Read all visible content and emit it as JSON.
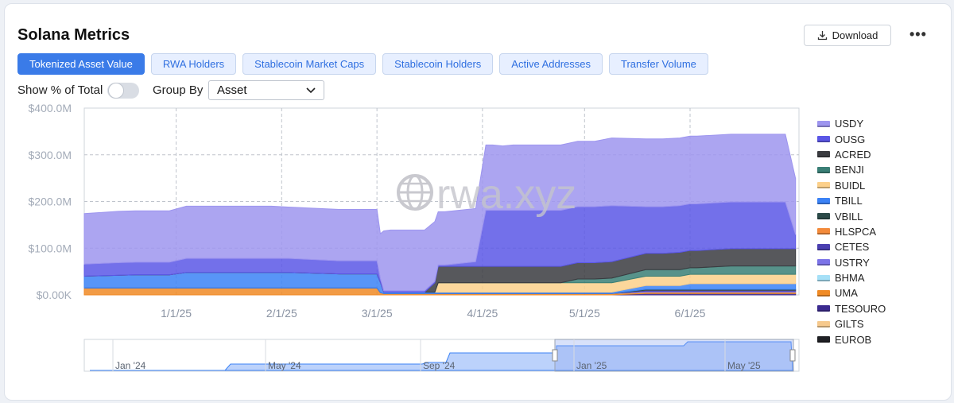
{
  "header": {
    "title": "Solana Metrics",
    "download_label": "Download",
    "more_label": "•••"
  },
  "tabs": [
    {
      "label": "Tokenized Asset Value",
      "active": true
    },
    {
      "label": "RWA Holders",
      "active": false
    },
    {
      "label": "Stablecoin Market Caps",
      "active": false
    },
    {
      "label": "Stablecoin Holders",
      "active": false
    },
    {
      "label": "Active Addresses",
      "active": false
    },
    {
      "label": "Transfer Volume",
      "active": false
    }
  ],
  "controls": {
    "show_pct_label": "Show % of Total",
    "show_pct_on": false,
    "group_by_label": "Group By",
    "group_by_value": "Asset"
  },
  "watermark": "rwa.xyz",
  "colors": {
    "accent": "#3a7be8",
    "tab_bg": "#e7efff"
  },
  "chart_data": {
    "type": "area",
    "stacked": true,
    "y_ticks": [
      "$0.00K",
      "$100.0M",
      "$200.0M",
      "$300.0M",
      "$400.0M"
    ],
    "ylim": [
      0,
      400
    ],
    "x_ticks": [
      "1/1/25",
      "2/1/25",
      "3/1/25",
      "4/1/25",
      "5/1/25",
      "6/1/25"
    ],
    "x_tick_days": [
      27,
      58,
      86,
      117,
      147,
      178
    ],
    "x_range_days": [
      0,
      210
    ],
    "grid": true,
    "legend_position": "right",
    "x": [
      0,
      10,
      15,
      25,
      30,
      40,
      55,
      60,
      75,
      80,
      84,
      86,
      87,
      88,
      90,
      94,
      95,
      100,
      103,
      104,
      106,
      115,
      118,
      120,
      123,
      126,
      128,
      130,
      138,
      140,
      145,
      147,
      150,
      155,
      165,
      168,
      170,
      175,
      178,
      180,
      185,
      190,
      195,
      200,
      205,
      206,
      209
    ],
    "series": [
      {
        "name": "EUROB",
        "color": "#1f2024",
        "values": [
          0,
          0,
          0,
          0,
          0,
          0,
          0,
          0,
          0,
          0,
          0,
          0,
          0,
          0,
          0,
          0,
          0,
          0,
          0,
          0,
          0,
          0,
          0,
          0,
          0,
          0,
          0,
          0,
          0,
          0,
          0,
          0,
          0,
          0,
          0,
          0,
          0,
          0,
          0,
          0,
          0,
          0,
          0,
          0,
          0,
          0,
          0
        ]
      },
      {
        "name": "GILTS",
        "color": "#f6c98d",
        "values": [
          0,
          0,
          0,
          0,
          0,
          0,
          0,
          0,
          0,
          0,
          0,
          0,
          0,
          0,
          0,
          0,
          0,
          0,
          0,
          0,
          0,
          0,
          0,
          0,
          0,
          0,
          0,
          0,
          0,
          0,
          0,
          0,
          0,
          0,
          0,
          0,
          0,
          0,
          0,
          0,
          0,
          0,
          0,
          0,
          0,
          0,
          0
        ]
      },
      {
        "name": "TESOURO",
        "color": "#3b2a8f",
        "values": [
          0,
          0,
          0,
          0,
          0,
          0,
          0,
          0,
          0,
          0,
          0,
          0,
          0,
          0,
          0,
          0,
          0,
          0,
          0,
          0,
          0,
          0,
          0,
          0,
          0,
          0,
          0,
          0,
          0,
          0,
          0,
          0,
          0,
          0,
          3,
          3,
          3,
          3,
          3,
          3,
          3,
          3,
          3,
          3,
          3,
          3,
          3
        ]
      },
      {
        "name": "UMA",
        "color": "#f08a24",
        "values": [
          15,
          15,
          15,
          15,
          15,
          15,
          15,
          15,
          15,
          15,
          15,
          15,
          5,
          3,
          3,
          3,
          3,
          3,
          3,
          3,
          3,
          3,
          3,
          3,
          3,
          3,
          3,
          3,
          3,
          3,
          3,
          3,
          3,
          3,
          3,
          3,
          3,
          3,
          3,
          3,
          3,
          3,
          3,
          3,
          3,
          3,
          3
        ]
      },
      {
        "name": "BHMA",
        "color": "#a6e0f7",
        "values": [
          0,
          0,
          0,
          0,
          0,
          0,
          0,
          0,
          0,
          0,
          0,
          0,
          0,
          0,
          0,
          0,
          0,
          0,
          0,
          0,
          0,
          0,
          0,
          0,
          0,
          0,
          0,
          0,
          0,
          0,
          0,
          0,
          0,
          0,
          0,
          0,
          0,
          0,
          0,
          0,
          0,
          0,
          0,
          0,
          0,
          0,
          0
        ]
      },
      {
        "name": "USTRY",
        "color": "#7b73e8",
        "values": [
          0,
          0,
          0,
          0,
          0,
          0,
          0,
          0,
          0,
          0,
          0,
          0,
          0,
          0,
          0,
          0,
          0,
          0,
          0,
          0,
          0,
          0,
          0,
          0,
          0,
          0,
          0,
          0,
          0,
          0,
          0,
          0,
          0,
          0,
          2,
          2,
          2,
          2,
          2,
          2,
          2,
          2,
          2,
          2,
          2,
          2,
          2
        ]
      },
      {
        "name": "CETES",
        "color": "#4a3fb0",
        "values": [
          0,
          0,
          0,
          0,
          0,
          0,
          0,
          0,
          0,
          0,
          0,
          0,
          0,
          0,
          0,
          0,
          0,
          0,
          0,
          0,
          0,
          0,
          0,
          0,
          0,
          0,
          0,
          0,
          0,
          0,
          0,
          0,
          0,
          0,
          2,
          2,
          2,
          2,
          2,
          2,
          2,
          2,
          2,
          2,
          2,
          2,
          2
        ]
      },
      {
        "name": "HLSPCA",
        "color": "#f38a3a",
        "values": [
          0,
          0,
          0,
          0,
          0,
          0,
          0,
          0,
          0,
          0,
          0,
          0,
          0,
          0,
          0,
          0,
          0,
          0,
          0,
          0,
          0,
          0,
          0,
          0,
          0,
          0,
          0,
          0,
          0,
          0,
          0,
          0,
          0,
          0,
          0,
          0,
          0,
          0,
          0,
          0,
          0,
          0,
          0,
          0,
          0,
          0,
          0
        ]
      },
      {
        "name": "VBILL",
        "color": "#2b4a48",
        "values": [
          0,
          0,
          0,
          0,
          0,
          0,
          0,
          0,
          0,
          0,
          0,
          0,
          0,
          0,
          0,
          0,
          0,
          0,
          0,
          0,
          0,
          0,
          0,
          0,
          0,
          0,
          0,
          0,
          0,
          0,
          0,
          0,
          0,
          0,
          2,
          2,
          2,
          2,
          2,
          2,
          2,
          2,
          2,
          2,
          2,
          2,
          2
        ]
      },
      {
        "name": "TBILL",
        "color": "#3b82f6",
        "values": [
          25,
          27,
          28,
          28,
          33,
          33,
          33,
          33,
          30,
          30,
          30,
          30,
          22,
          3,
          3,
          3,
          3,
          3,
          3,
          3,
          3,
          3,
          3,
          3,
          3,
          3,
          3,
          3,
          3,
          3,
          3,
          3,
          3,
          3,
          8,
          8,
          8,
          8,
          12,
          12,
          12,
          12,
          12,
          12,
          12,
          12,
          12
        ]
      },
      {
        "name": "BUIDL",
        "color": "#fcd08a",
        "values": [
          0,
          0,
          0,
          0,
          0,
          0,
          0,
          0,
          0,
          0,
          0,
          0,
          0,
          0,
          0,
          0,
          0,
          0,
          0,
          20,
          20,
          20,
          20,
          20,
          20,
          20,
          20,
          20,
          20,
          20,
          20,
          20,
          20,
          20,
          20,
          20,
          20,
          20,
          20,
          20,
          20,
          20,
          20,
          20,
          20,
          20,
          20
        ]
      },
      {
        "name": "BENJI",
        "color": "#3a7f76",
        "values": [
          0,
          0,
          0,
          0,
          0,
          0,
          0,
          0,
          0,
          0,
          0,
          0,
          0,
          0,
          0,
          0,
          0,
          0,
          0,
          0,
          0,
          0,
          0,
          0,
          0,
          0,
          0,
          0,
          0,
          0,
          8,
          8,
          8,
          10,
          14,
          14,
          14,
          14,
          14,
          14,
          16,
          18,
          18,
          18,
          18,
          18,
          18
        ]
      },
      {
        "name": "ACRED",
        "color": "#3a3b40",
        "values": [
          0,
          0,
          0,
          0,
          0,
          0,
          0,
          0,
          0,
          0,
          0,
          0,
          0,
          0,
          0,
          0,
          0,
          0,
          20,
          35,
          35,
          35,
          35,
          35,
          35,
          35,
          35,
          35,
          35,
          35,
          35,
          35,
          35,
          35,
          35,
          35,
          35,
          37,
          37,
          37,
          37,
          37,
          37,
          37,
          37,
          37,
          37
        ]
      },
      {
        "name": "OUSG",
        "color": "#5b57e6",
        "values": [
          26,
          27,
          27,
          27,
          30,
          30,
          30,
          30,
          28,
          28,
          28,
          28,
          8,
          3,
          3,
          3,
          3,
          3,
          3,
          3,
          3,
          10,
          120,
          120,
          120,
          120,
          120,
          120,
          120,
          120,
          120,
          120,
          120,
          120,
          100,
          100,
          100,
          100,
          100,
          100,
          100,
          100,
          100,
          100,
          100,
          100,
          30
        ]
      },
      {
        "name": "USDY",
        "color": "#9d95ef",
        "values": [
          108,
          110,
          110,
          110,
          112,
          112,
          112,
          110,
          110,
          110,
          110,
          110,
          96,
          128,
          130,
          130,
          130,
          130,
          128,
          114,
          114,
          114,
          140,
          140,
          138,
          140,
          140,
          140,
          140,
          140,
          140,
          140,
          140,
          145,
          145,
          145,
          145,
          145,
          145,
          145,
          145,
          145,
          145,
          145,
          145,
          145,
          120
        ]
      }
    ],
    "overview": {
      "ticks": [
        "Jan '24",
        "May '24",
        "Sep '24",
        "Jan '25",
        "May '25"
      ]
    }
  }
}
